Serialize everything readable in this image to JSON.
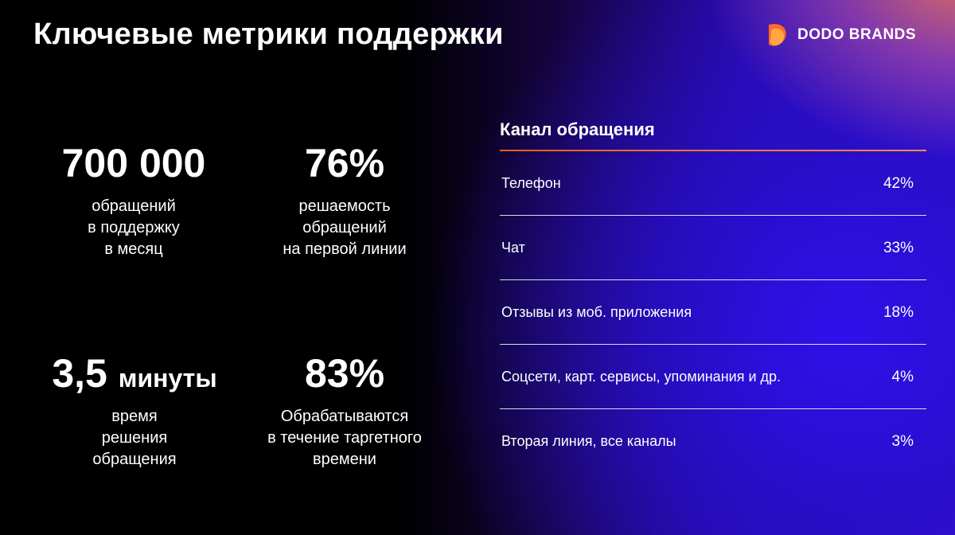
{
  "title": "Ключевые метрики поддержки",
  "logo": {
    "text": "DODO BRANDS",
    "icon": "dodo-logo-icon",
    "color": "#ff6a2c"
  },
  "colors": {
    "accent": "#ff6a2c",
    "background": "#000000",
    "glow": "#3510e6"
  },
  "metrics": [
    {
      "value": "700 000",
      "unit": "",
      "desc": [
        "обращений",
        "в поддержку",
        "в месяц"
      ]
    },
    {
      "value": "76%",
      "unit": "",
      "desc": [
        "решаемость",
        "обращений",
        "на первой линии"
      ]
    },
    {
      "value": "3,5",
      "unit": "минуты",
      "desc": [
        "время",
        "решения",
        "обращения"
      ]
    },
    {
      "value": "83%",
      "unit": "",
      "desc": [
        "Обрабатываются",
        "в течение таргетного",
        "времени"
      ]
    }
  ],
  "channels": {
    "title": "Канал обращения",
    "rows": [
      {
        "name": "Телефон",
        "pct": "42%"
      },
      {
        "name": "Чат",
        "pct": "33%"
      },
      {
        "name": "Отзывы из моб. приложения",
        "pct": "18%"
      },
      {
        "name": "Соцсети, карт. сервисы, упоминания и др.",
        "pct": "4%"
      },
      {
        "name": "Вторая линия, все каналы",
        "pct": "3%"
      }
    ]
  }
}
